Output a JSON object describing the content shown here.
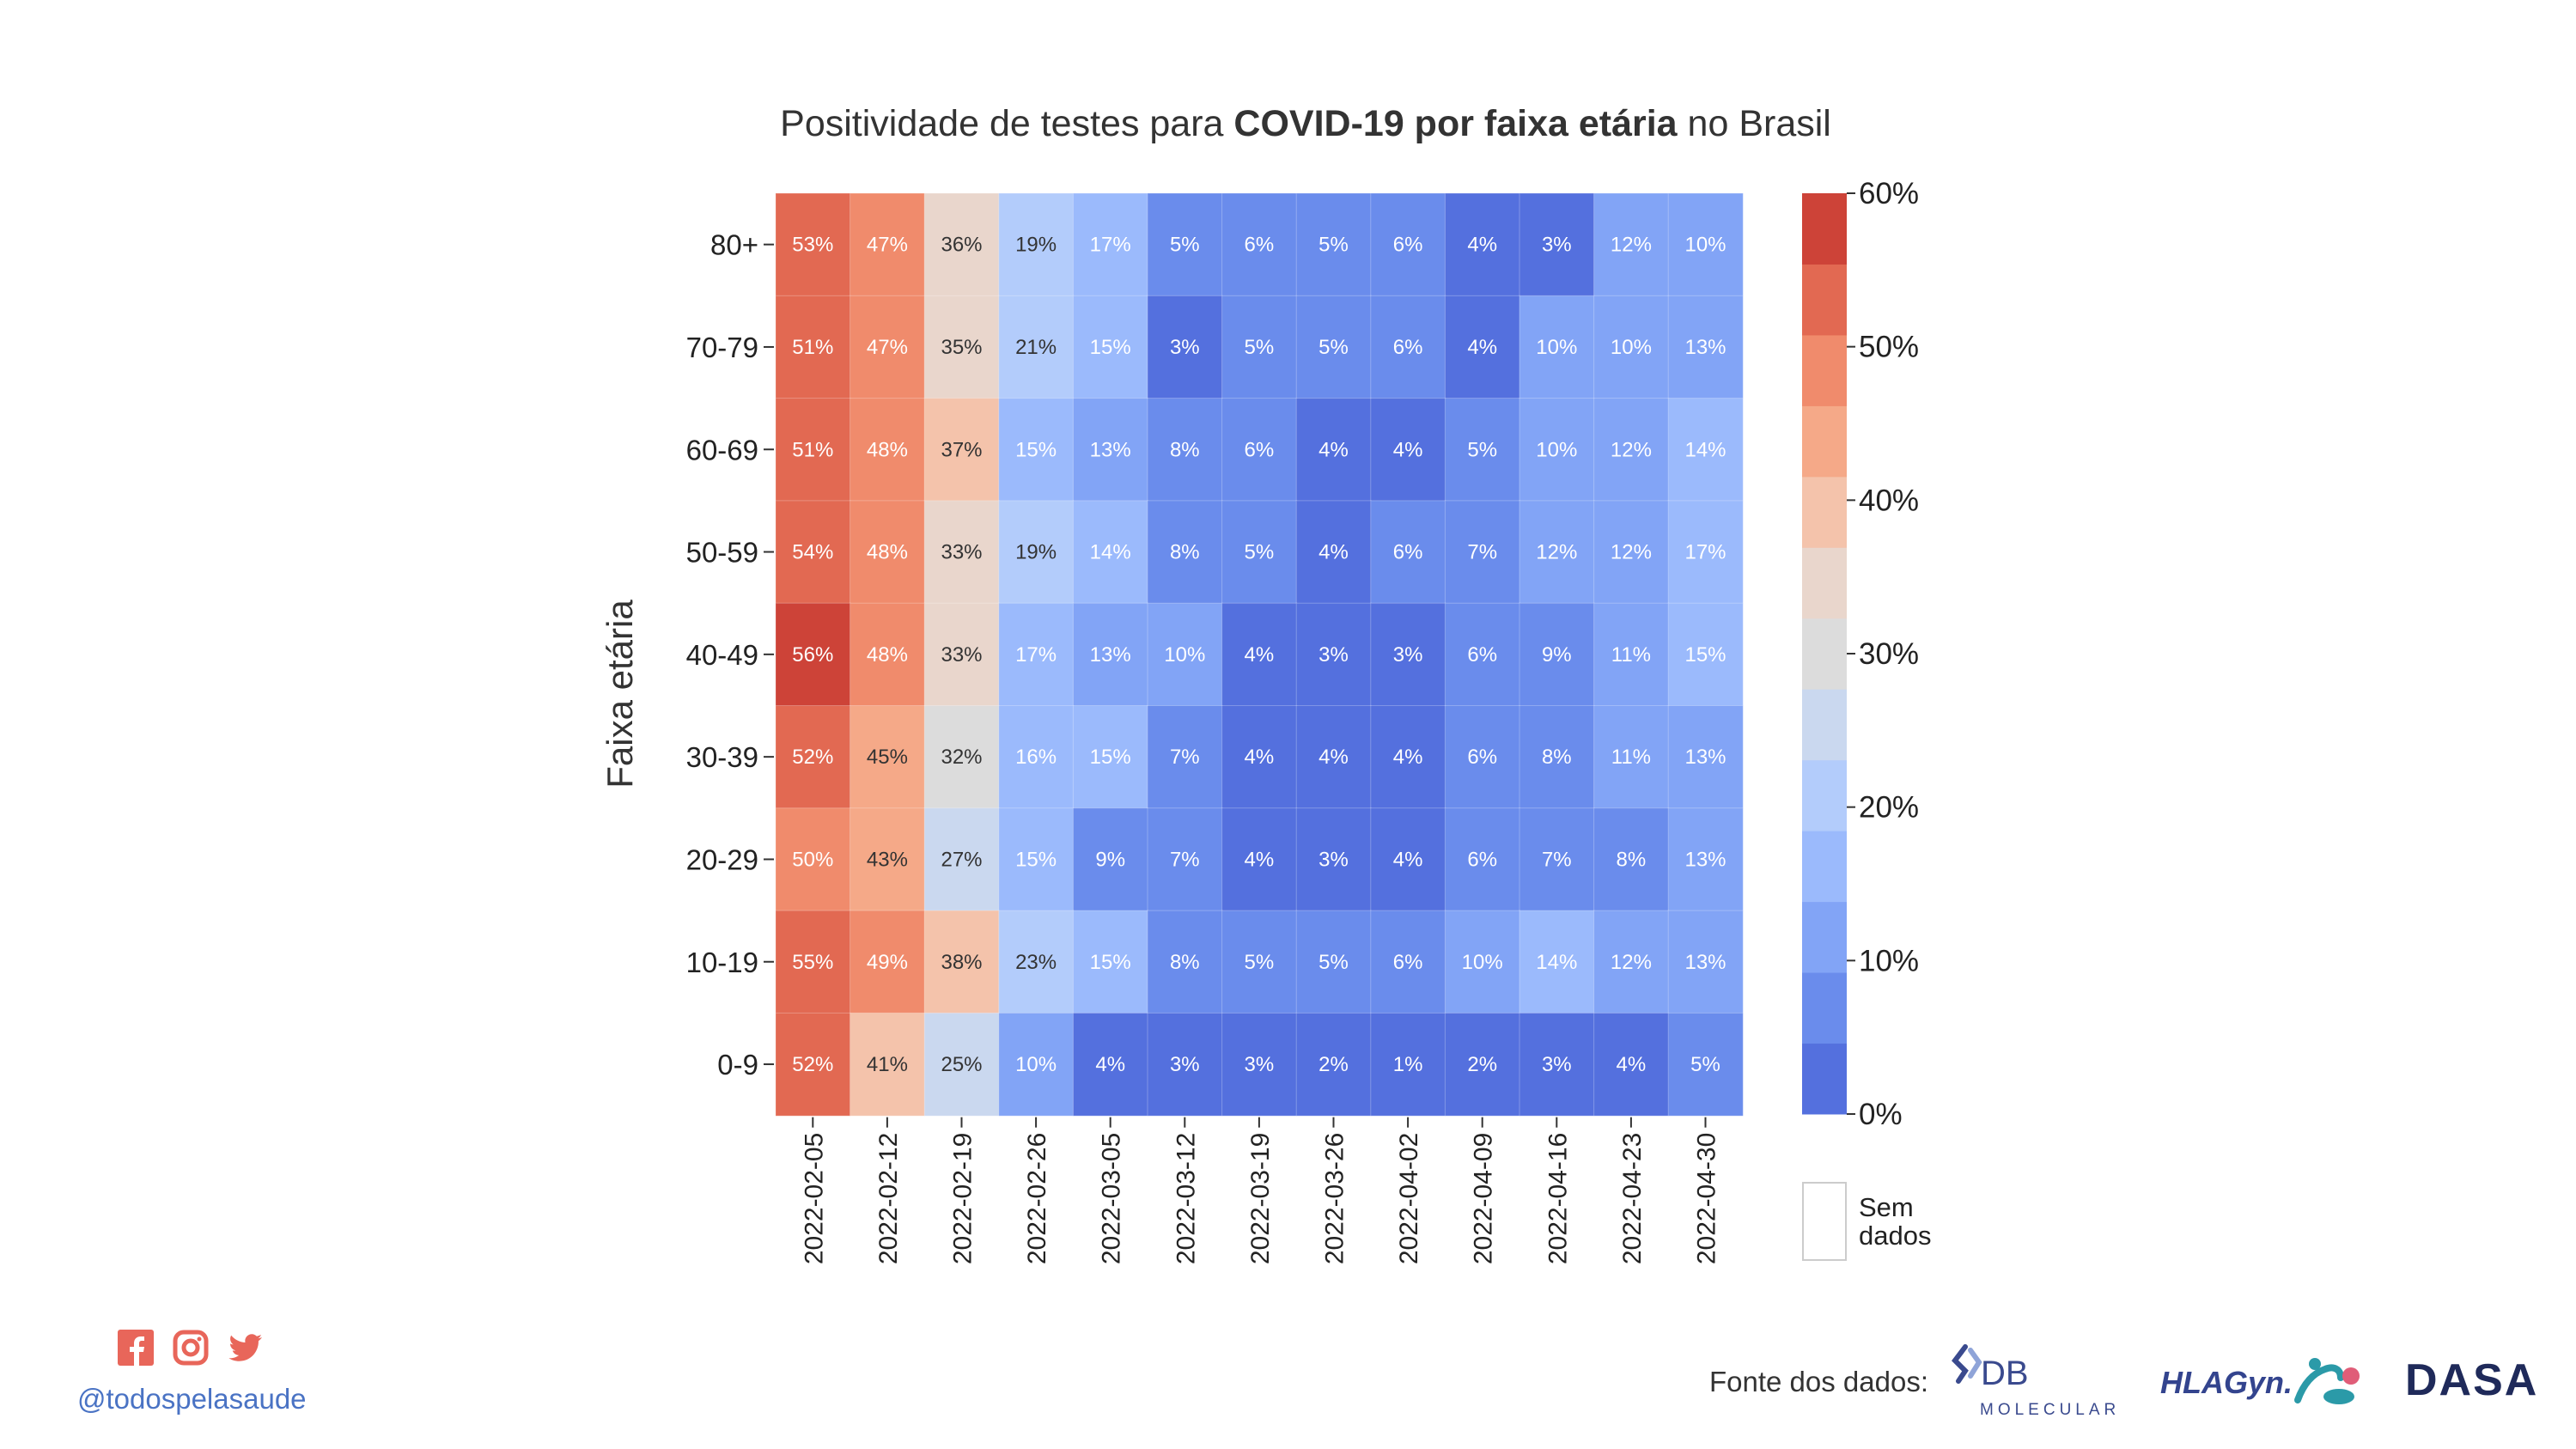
{
  "title": {
    "prefix": "Positividade de testes para ",
    "bold": "COVID-19 por faixa etária",
    "suffix": " no Brasil"
  },
  "chart_data": {
    "type": "heatmap",
    "ylabel": "Faixa etária",
    "xlabel": "",
    "x": [
      "2022-02-05",
      "2022-02-12",
      "2022-02-19",
      "2022-02-26",
      "2022-03-05",
      "2022-03-12",
      "2022-03-19",
      "2022-03-26",
      "2022-04-02",
      "2022-04-09",
      "2022-04-16",
      "2022-04-23",
      "2022-04-30"
    ],
    "y": [
      "80+",
      "70-79",
      "60-69",
      "50-59",
      "40-49",
      "30-39",
      "20-29",
      "10-19",
      "0-9"
    ],
    "values": [
      [
        53,
        47,
        36,
        19,
        17,
        5,
        6,
        5,
        6,
        4,
        3,
        12,
        10
      ],
      [
        51,
        47,
        35,
        21,
        15,
        3,
        5,
        5,
        6,
        4,
        10,
        10,
        13
      ],
      [
        51,
        48,
        37,
        15,
        13,
        8,
        6,
        4,
        4,
        5,
        10,
        12,
        14
      ],
      [
        54,
        48,
        33,
        19,
        14,
        8,
        5,
        4,
        6,
        7,
        12,
        12,
        17
      ],
      [
        56,
        48,
        33,
        17,
        13,
        10,
        4,
        3,
        3,
        6,
        9,
        11,
        15
      ],
      [
        52,
        45,
        32,
        16,
        15,
        7,
        4,
        4,
        4,
        6,
        8,
        11,
        13
      ],
      [
        50,
        43,
        27,
        15,
        9,
        7,
        4,
        3,
        4,
        6,
        7,
        8,
        13
      ],
      [
        55,
        49,
        38,
        23,
        15,
        8,
        5,
        5,
        6,
        10,
        14,
        12,
        13
      ],
      [
        52,
        41,
        25,
        10,
        4,
        3,
        3,
        2,
        1,
        2,
        3,
        4,
        5
      ]
    ],
    "value_suffix": "%",
    "colorbar": {
      "range": [
        0,
        60
      ],
      "ticks": [
        "0%",
        "10%",
        "20%",
        "30%",
        "40%",
        "50%",
        "60%"
      ],
      "bands": [
        "#5470de",
        "#6a8cec",
        "#82a4f6",
        "#9bbafc",
        "#b3ccfb",
        "#cad8ef",
        "#dcdcdc",
        "#e9d6cc",
        "#f4c3ab",
        "#f5a988",
        "#f08b6c",
        "#e26952",
        "#cd4338"
      ]
    },
    "missing_label": [
      "Sem",
      "dados"
    ]
  },
  "social": {
    "icons": [
      "facebook-icon",
      "instagram-icon",
      "twitter-icon"
    ],
    "color": "#e8665a",
    "handle": "@todospelasaude"
  },
  "source": {
    "label": "Fonte dos dados:",
    "logos": [
      "DB",
      "MOLECULAR",
      "HLAGyn.",
      "DASA"
    ]
  }
}
